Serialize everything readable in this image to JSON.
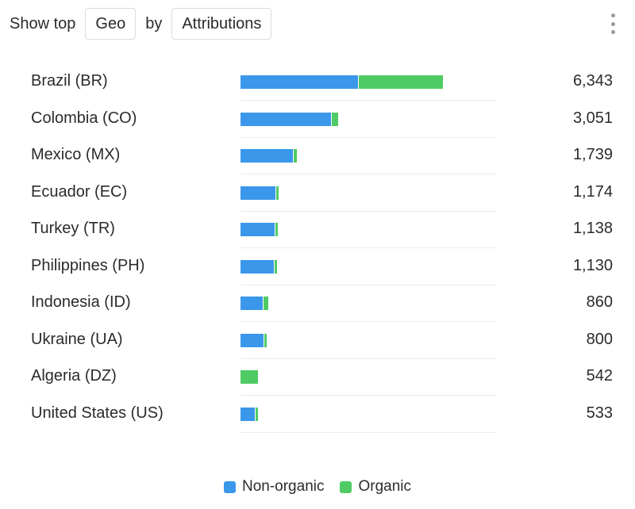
{
  "toolbar": {
    "show_top_label": "Show top",
    "dimension": "Geo",
    "by_label": "by",
    "metric": "Attributions"
  },
  "colors": {
    "non_organic": "#3a97ea",
    "organic": "#4ecb64"
  },
  "legend": [
    {
      "name": "Non-organic",
      "color": "#3a97ea"
    },
    {
      "name": "Organic",
      "color": "#4ecb64"
    }
  ],
  "chart_data": {
    "type": "bar",
    "orientation": "horizontal",
    "stacked": true,
    "categories": [
      "Brazil (BR)",
      "Colombia (CO)",
      "Mexico (MX)",
      "Ecuador (EC)",
      "Turkey (TR)",
      "Philippines (PH)",
      "Indonesia (ID)",
      "Ukraine (UA)",
      "Algeria (DZ)",
      "United States (US)"
    ],
    "totals": [
      "6,343",
      "3,051",
      "1,739",
      "1,174",
      "1,138",
      "1,130",
      "860",
      "800",
      "542",
      "533"
    ],
    "series": [
      {
        "name": "Non-organic",
        "values": [
          3700,
          2860,
          1660,
          1100,
          1080,
          1060,
          710,
          730,
          0,
          460
        ]
      },
      {
        "name": "Organic",
        "values": [
          2643,
          191,
          79,
          74,
          58,
          70,
          150,
          70,
          542,
          73
        ]
      }
    ],
    "xlim": [
      0,
      8000
    ],
    "grid": false,
    "legend_position": "bottom"
  }
}
